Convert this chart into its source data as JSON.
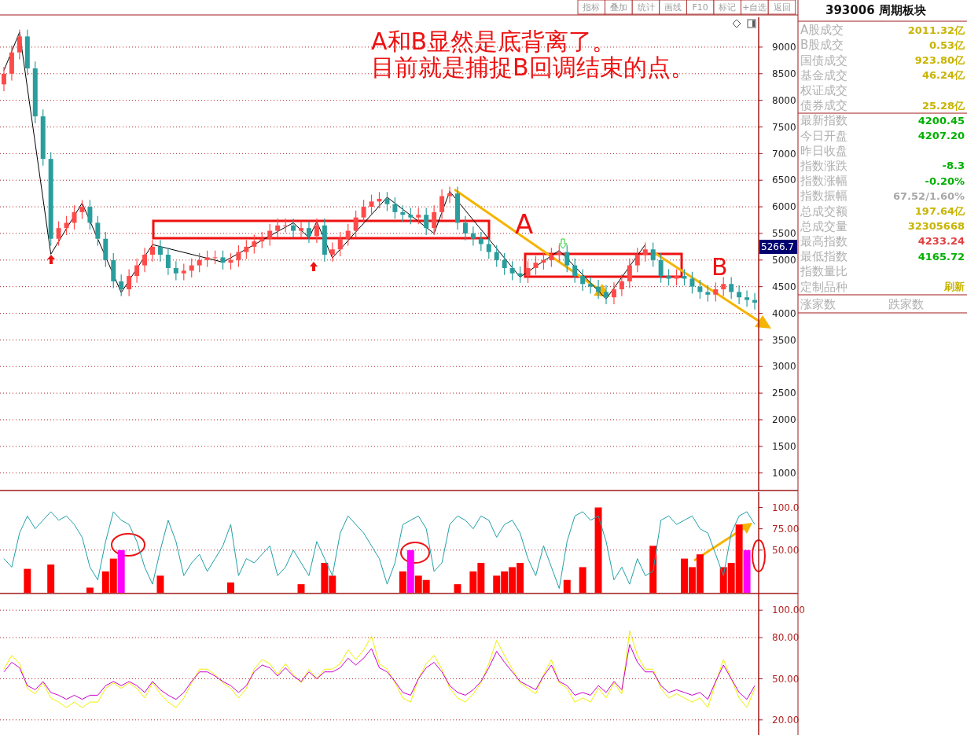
{
  "chart_data": [
    {
      "type": "candlestick",
      "categories": [
        null,
        null,
        null,
        null,
        null,
        null,
        null,
        null,
        null,
        null,
        null,
        null,
        null,
        null,
        null,
        null,
        null,
        null,
        null,
        null,
        null,
        null,
        null,
        null,
        null,
        null,
        null,
        null,
        null,
        null,
        null,
        null,
        null,
        null,
        null,
        null,
        null,
        null,
        null,
        null,
        null,
        null,
        null,
        null,
        null,
        null,
        null,
        null,
        null,
        null,
        null,
        null,
        null,
        null,
        null,
        null,
        null,
        null,
        null,
        null,
        null,
        null,
        null,
        null,
        null,
        null,
        null,
        null,
        null,
        null,
        null,
        null,
        null,
        null,
        null,
        null,
        null,
        null,
        null,
        null,
        null,
        null,
        null,
        null,
        null,
        null,
        null,
        null,
        null,
        null,
        null,
        null,
        null,
        null,
        null,
        null,
        null
      ],
      "ohlc": [
        [
          8300,
          8620,
          8180,
          8500
        ],
        [
          8500,
          9020,
          8380,
          8900
        ],
        [
          8900,
          9320,
          8780,
          9200
        ],
        [
          9200,
          9320,
          8480,
          8600
        ],
        [
          8600,
          8720,
          7580,
          7700
        ],
        [
          7700,
          7820,
          6780,
          6900
        ],
        [
          6900,
          7020,
          5280,
          5400
        ],
        [
          5400,
          5720,
          5280,
          5600
        ],
        [
          5600,
          5820,
          5480,
          5700
        ],
        [
          5700,
          6020,
          5580,
          5900
        ],
        [
          5900,
          6120,
          5780,
          6000
        ],
        [
          6000,
          6120,
          5580,
          5700
        ],
        [
          5700,
          5820,
          5280,
          5400
        ],
        [
          5400,
          5520,
          4880,
          5000
        ],
        [
          5000,
          5120,
          4480,
          4600
        ],
        [
          4600,
          4720,
          4330,
          4450
        ],
        [
          4450,
          4820,
          4330,
          4700
        ],
        [
          4700,
          5020,
          4580,
          4900
        ],
        [
          4900,
          5220,
          4780,
          5100
        ],
        [
          5100,
          5370,
          4980,
          5250
        ],
        [
          5250,
          5370,
          4980,
          5100
        ],
        [
          5100,
          5220,
          4730,
          4850
        ],
        [
          4850,
          4970,
          4630,
          4750
        ],
        [
          4750,
          4920,
          4630,
          4800
        ],
        [
          4800,
          5020,
          4680,
          4900
        ],
        [
          4900,
          5120,
          4780,
          5000
        ],
        [
          5000,
          5170,
          4880,
          5050
        ],
        [
          5050,
          5170,
          4930,
          5050
        ],
        [
          5050,
          5170,
          4830,
          4950
        ],
        [
          4950,
          5120,
          4830,
          5000
        ],
        [
          5000,
          5270,
          4880,
          5150
        ],
        [
          5150,
          5370,
          5030,
          5250
        ],
        [
          5250,
          5470,
          5130,
          5350
        ],
        [
          5350,
          5520,
          5230,
          5400
        ],
        [
          5400,
          5670,
          5280,
          5550
        ],
        [
          5550,
          5770,
          5430,
          5650
        ],
        [
          5650,
          5770,
          5530,
          5650
        ],
        [
          5650,
          5770,
          5430,
          5550
        ],
        [
          5550,
          5720,
          5430,
          5600
        ],
        [
          5600,
          5720,
          5330,
          5450
        ],
        [
          5450,
          5770,
          5330,
          5650
        ],
        [
          5650,
          5770,
          4980,
          5100
        ],
        [
          5100,
          5320,
          4980,
          5200
        ],
        [
          5200,
          5520,
          5080,
          5400
        ],
        [
          5400,
          5670,
          5280,
          5550
        ],
        [
          5550,
          5920,
          5430,
          5800
        ],
        [
          5800,
          6120,
          5680,
          6000
        ],
        [
          6000,
          6220,
          5880,
          6100
        ],
        [
          6100,
          6270,
          5980,
          6150
        ],
        [
          6150,
          6270,
          5930,
          6050
        ],
        [
          6050,
          6170,
          5780,
          5900
        ],
        [
          5900,
          6020,
          5730,
          5850
        ],
        [
          5850,
          5970,
          5680,
          5800
        ],
        [
          5800,
          5970,
          5680,
          5850
        ],
        [
          5850,
          5970,
          5480,
          5600
        ],
        [
          5600,
          6020,
          5480,
          5900
        ],
        [
          5900,
          6320,
          5780,
          6200
        ],
        [
          6200,
          6370,
          6080,
          6250
        ],
        [
          6250,
          6370,
          5580,
          5700
        ],
        [
          5700,
          5820,
          5380,
          5500
        ],
        [
          5500,
          5620,
          5280,
          5400
        ],
        [
          5400,
          5520,
          5180,
          5300
        ],
        [
          5300,
          5420,
          5030,
          5150
        ],
        [
          5150,
          5270,
          4880,
          5000
        ],
        [
          5000,
          5120,
          4730,
          4850
        ],
        [
          4850,
          4970,
          4630,
          4750
        ],
        [
          4750,
          4870,
          4580,
          4700
        ],
        [
          4700,
          4970,
          4580,
          4850
        ],
        [
          4850,
          5070,
          4730,
          4950
        ],
        [
          4950,
          5120,
          4830,
          5000
        ],
        [
          5000,
          5220,
          4880,
          5100
        ],
        [
          5100,
          5270,
          4980,
          5150
        ],
        [
          5150,
          5270,
          4780,
          4900
        ],
        [
          4900,
          5020,
          4580,
          4700
        ],
        [
          4700,
          4820,
          4430,
          4550
        ],
        [
          4550,
          4670,
          4380,
          4500
        ],
        [
          4500,
          4620,
          4280,
          4400
        ],
        [
          4400,
          4520,
          4180,
          4300
        ],
        [
          4300,
          4570,
          4180,
          4450
        ],
        [
          4450,
          4720,
          4330,
          4600
        ],
        [
          4600,
          5020,
          4480,
          4900
        ],
        [
          4900,
          5220,
          4780,
          5100
        ],
        [
          5100,
          5320,
          4980,
          5200
        ],
        [
          5200,
          5320,
          4880,
          5000
        ],
        [
          5000,
          5120,
          4580,
          4700
        ],
        [
          4700,
          4820,
          4530,
          4650
        ],
        [
          4650,
          4820,
          4530,
          4700
        ],
        [
          4700,
          4820,
          4530,
          4650
        ],
        [
          4650,
          4770,
          4380,
          4500
        ],
        [
          4500,
          4620,
          4280,
          4400
        ],
        [
          4400,
          4520,
          4230,
          4350
        ],
        [
          4350,
          4570,
          4230,
          4450
        ],
        [
          4450,
          4670,
          4330,
          4550
        ],
        [
          4550,
          4670,
          4280,
          4400
        ],
        [
          4400,
          4520,
          4180,
          4300
        ],
        [
          4300,
          4420,
          4130,
          4250
        ],
        [
          4250,
          4370,
          4080,
          4200
        ]
      ],
      "series": [
        {
          "type": "line",
          "color": "#000000",
          "values": [
            8560,
            null,
            9280,
            null,
            null,
            null,
            5110,
            null,
            null,
            null,
            6070,
            null,
            null,
            null,
            null,
            4390,
            null,
            null,
            null,
            5290,
            null,
            null,
            null,
            null,
            null,
            null,
            null,
            null,
            4960,
            null,
            null,
            null,
            null,
            null,
            null,
            null,
            null,
            5700,
            null,
            5420,
            5720,
            null,
            5040,
            null,
            null,
            null,
            null,
            null,
            null,
            6180,
            null,
            null,
            null,
            null,
            null,
            5500,
            null,
            6290,
            null,
            null,
            null,
            null,
            null,
            null,
            null,
            null,
            4680,
            null,
            null,
            null,
            null,
            5180,
            null,
            null,
            null,
            null,
            null,
            4270,
            null,
            null,
            null,
            null,
            5290,
            null,
            null,
            null,
            null,
            null,
            null,
            null,
            null,
            null,
            null,
            null,
            null,
            null,
            null
          ]
        }
      ],
      "ylim": [
        700,
        9560
      ],
      "yticks": [
        1000,
        1500,
        2000,
        2500,
        3000,
        3500,
        4000,
        4500,
        5000,
        5500,
        6000,
        6500,
        7000,
        7500,
        8000,
        8500,
        9000
      ],
      "grid": "y",
      "tick_labels": "y",
      "annotations": [
        "A和B显然是底背离了。",
        "目前就是捕捉B回调结束的点。",
        "A",
        "B",
        "5266.7"
      ]
    },
    {
      "type": "line",
      "categories": [
        null,
        null,
        null,
        null,
        null,
        null,
        null,
        null,
        null,
        null,
        null,
        null,
        null,
        null,
        null,
        null,
        null,
        null,
        null,
        null,
        null,
        null,
        null,
        null,
        null,
        null,
        null,
        null,
        null,
        null,
        null,
        null,
        null,
        null,
        null,
        null,
        null,
        null,
        null,
        null,
        null,
        null,
        null,
        null,
        null,
        null,
        null,
        null,
        null,
        null,
        null,
        null,
        null,
        null,
        null,
        null,
        null,
        null,
        null,
        null,
        null,
        null,
        null,
        null,
        null,
        null,
        null,
        null,
        null,
        null,
        null,
        null,
        null,
        null,
        null,
        null,
        null,
        null,
        null,
        null,
        null,
        null,
        null,
        null,
        null,
        null,
        null,
        null,
        null,
        null,
        null,
        null,
        null,
        null,
        null,
        null,
        null
      ],
      "series": [
        {
          "type": "bar",
          "color": "#ff0000",
          "values": [
            null,
            null,
            null,
            28,
            null,
            null,
            33,
            null,
            null,
            null,
            null,
            6,
            null,
            25,
            40,
            null,
            null,
            null,
            null,
            null,
            20,
            null,
            null,
            null,
            null,
            null,
            null,
            null,
            null,
            12,
            null,
            null,
            null,
            null,
            null,
            null,
            null,
            null,
            10,
            null,
            null,
            35,
            20,
            null,
            null,
            null,
            null,
            null,
            null,
            null,
            null,
            25,
            null,
            20,
            15,
            null,
            null,
            null,
            10,
            null,
            25,
            35,
            null,
            20,
            25,
            30,
            35,
            null,
            null,
            null,
            null,
            null,
            15,
            null,
            30,
            null,
            100,
            null,
            null,
            null,
            null,
            null,
            null,
            55,
            null,
            null,
            null,
            40,
            30,
            45,
            null,
            null,
            30,
            35,
            80,
            null,
            null
          ]
        },
        {
          "type": "bar",
          "color": "#ff00ff",
          "values": [
            null,
            null,
            null,
            null,
            null,
            null,
            null,
            null,
            null,
            null,
            null,
            null,
            null,
            null,
            null,
            50,
            null,
            null,
            null,
            null,
            null,
            null,
            null,
            null,
            null,
            null,
            null,
            null,
            null,
            null,
            null,
            null,
            null,
            null,
            null,
            null,
            null,
            null,
            null,
            null,
            null,
            null,
            null,
            null,
            null,
            null,
            null,
            null,
            null,
            null,
            null,
            null,
            50,
            null,
            null,
            null,
            null,
            null,
            null,
            null,
            null,
            null,
            null,
            null,
            null,
            null,
            null,
            null,
            null,
            null,
            null,
            null,
            null,
            null,
            null,
            null,
            null,
            null,
            null,
            null,
            null,
            null,
            null,
            null,
            null,
            null,
            null,
            null,
            null,
            null,
            null,
            null,
            null,
            null,
            null,
            50,
            null
          ]
        },
        {
          "type": "line",
          "color": "#20a0a8",
          "values": [
            40,
            30,
            70,
            90,
            75,
            85,
            95,
            85,
            90,
            80,
            65,
            30,
            15,
            60,
            95,
            85,
            80,
            60,
            30,
            10,
            50,
            85,
            60,
            20,
            35,
            45,
            25,
            40,
            55,
            80,
            20,
            40,
            35,
            45,
            55,
            20,
            30,
            50,
            35,
            20,
            60,
            40,
            20,
            70,
            90,
            80,
            70,
            55,
            40,
            10,
            35,
            80,
            85,
            90,
            75,
            25,
            35,
            80,
            90,
            85,
            75,
            90,
            85,
            65,
            80,
            85,
            70,
            40,
            20,
            55,
            30,
            5,
            60,
            90,
            95,
            85,
            90,
            60,
            15,
            30,
            10,
            40,
            20,
            25,
            85,
            90,
            80,
            85,
            90,
            75,
            70,
            45,
            20,
            70,
            90,
            95,
            80
          ]
        }
      ],
      "ylim": [
        0,
        118
      ],
      "yticks": [
        {
          "value": 50,
          "label": "50.00"
        },
        {
          "value": 75,
          "label": "75.00"
        },
        {
          "value": 100,
          "label": "100.0"
        }
      ],
      "tick_labels": "y",
      "ref_lines": [
        {
          "axis": "y",
          "value": 50,
          "color": "#b22222",
          "line_style": "dotted"
        }
      ]
    },
    {
      "type": "line",
      "categories": [
        null,
        null,
        null,
        null,
        null,
        null,
        null,
        null,
        null,
        null,
        null,
        null,
        null,
        null,
        null,
        null,
        null,
        null,
        null,
        null,
        null,
        null,
        null,
        null,
        null,
        null,
        null,
        null,
        null,
        null,
        null,
        null,
        null,
        null,
        null,
        null,
        null,
        null,
        null,
        null,
        null,
        null,
        null,
        null,
        null,
        null,
        null,
        null,
        null,
        null,
        null,
        null,
        null,
        null,
        null,
        null,
        null,
        null,
        null,
        null,
        null,
        null,
        null,
        null,
        null,
        null,
        null,
        null,
        null,
        null,
        null,
        null,
        null,
        null,
        null,
        null,
        null,
        null,
        null,
        null,
        null,
        null,
        null,
        null,
        null,
        null,
        null,
        null,
        null,
        null,
        null,
        null,
        null,
        null,
        null,
        null,
        null
      ],
      "series": [
        {
          "color": "#f0f000",
          "values": [
            57,
            67,
            61,
            43,
            39,
            47,
            36,
            33,
            29,
            33,
            29,
            33,
            33,
            43,
            47,
            43,
            47,
            43,
            36,
            47,
            39,
            33,
            29,
            36,
            47,
            57,
            57,
            53,
            47,
            43,
            36,
            43,
            57,
            64,
            61,
            53,
            61,
            53,
            47,
            57,
            50,
            57,
            57,
            61,
            71,
            64,
            71,
            81,
            61,
            57,
            47,
            36,
            33,
            50,
            61,
            67,
            57,
            43,
            36,
            33,
            39,
            47,
            61,
            78,
            67,
            57,
            47,
            43,
            39,
            53,
            64,
            47,
            43,
            33,
            36,
            33,
            43,
            36,
            47,
            39,
            85,
            67,
            57,
            57,
            43,
            36,
            39,
            36,
            33,
            36,
            29,
            47,
            64,
            50,
            36,
            29,
            43
          ]
        },
        {
          "color": "#cc00cc",
          "values": [
            55,
            62,
            58,
            45,
            42,
            48,
            40,
            38,
            35,
            38,
            35,
            38,
            38,
            45,
            48,
            45,
            48,
            45,
            40,
            48,
            42,
            38,
            35,
            40,
            48,
            55,
            55,
            52,
            48,
            45,
            40,
            45,
            55,
            60,
            58,
            52,
            58,
            52,
            48,
            55,
            50,
            55,
            55,
            58,
            65,
            60,
            65,
            72,
            58,
            55,
            48,
            40,
            38,
            50,
            58,
            62,
            55,
            45,
            40,
            38,
            42,
            48,
            58,
            70,
            62,
            55,
            48,
            45,
            42,
            52,
            60,
            48,
            45,
            38,
            40,
            38,
            45,
            40,
            48,
            42,
            75,
            62,
            55,
            55,
            45,
            40,
            42,
            40,
            38,
            40,
            35,
            48,
            60,
            50,
            40,
            35,
            45
          ]
        }
      ],
      "ylim": [
        9,
        111
      ],
      "yticks": [
        {
          "value": 20,
          "label": "20.00"
        },
        {
          "value": 50,
          "label": "50.00"
        },
        {
          "value": 80,
          "label": "80.00"
        },
        {
          "value": 100,
          "label": "100.00"
        }
      ],
      "grid": "y",
      "tick_labels": "y"
    },
    {
      "type": "other",
      "title": "393006 周期板块",
      "categories": [
        "A股成交",
        "B股成交",
        "国债成交",
        "基金成交",
        "权证成交",
        "债券成交",
        "最新指数",
        "今日开盘",
        "昨日收盘",
        "指数涨跌",
        "指数涨幅",
        "指数振幅",
        "总成交额",
        "总成交量",
        "最高指数",
        "最低指数",
        "指数量比",
        "定制品种"
      ],
      "value_labels": [
        "2011.32亿",
        "0.53亿",
        "923.80亿",
        "46.24亿",
        null,
        "25.28亿",
        "4200.45",
        "4207.20",
        null,
        "-8.3",
        "-0.20%",
        "67.52/1.60%",
        "197.64亿",
        "32305668",
        "4233.24",
        "4165.72",
        null,
        "刷新"
      ],
      "colors": [
        "#c8b400",
        "#c8b400",
        "#c8b400",
        "#c8b400",
        null,
        "#c8b400",
        "#00b000",
        "#00b000",
        null,
        "#00b000",
        "#00b000",
        "#a8a8a8",
        "#c8b400",
        "#c8b400",
        "#e04040",
        "#00b000",
        null,
        "#c8b400"
      ],
      "annotations": [
        "涨家数",
        "跌家数"
      ]
    },
    {
      "type": "other",
      "categories": [
        "指标",
        "叠加",
        "统计",
        "画线",
        "F10",
        "标记",
        "+自选",
        "返回"
      ]
    }
  ]
}
